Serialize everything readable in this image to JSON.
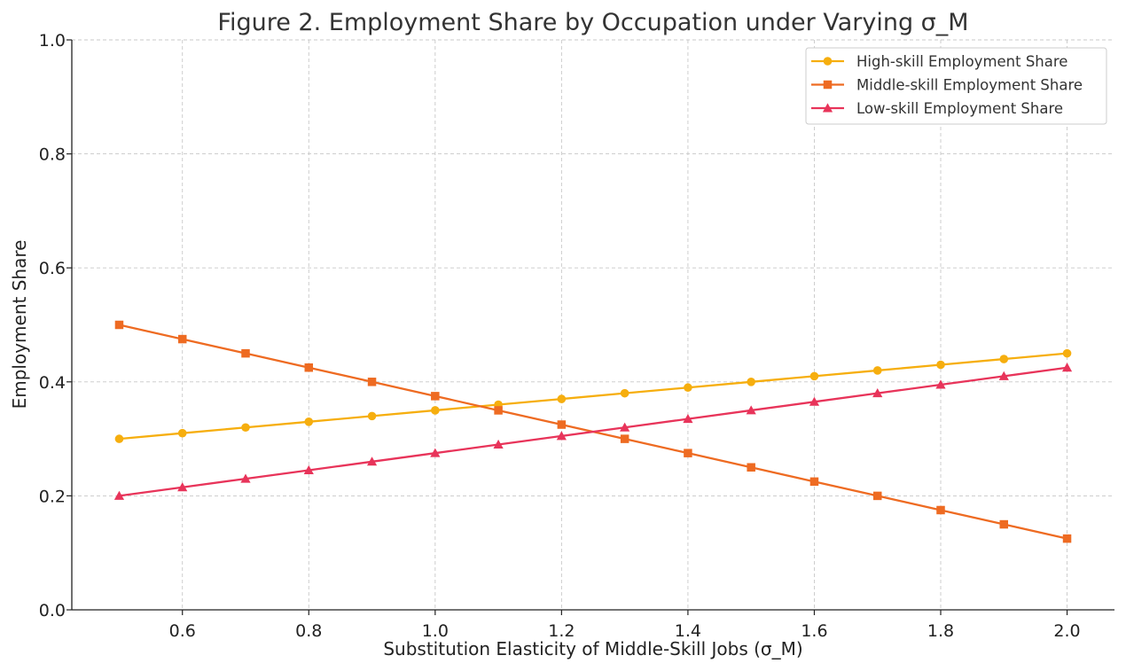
{
  "chart_data": {
    "type": "line",
    "title": "Figure 2. Employment Share by Occupation under Varying σ_M",
    "xlabel": "Substitution Elasticity of Middle-Skill Jobs (σ_M)",
    "ylabel": "Employment Share",
    "xlim": [
      0.425,
      2.075
    ],
    "ylim": [
      0.0,
      1.0
    ],
    "xticks": [
      0.6,
      0.8,
      1.0,
      1.2,
      1.4,
      1.6,
      1.8,
      2.0
    ],
    "xtick_labels": [
      "0.6",
      "0.8",
      "1.0",
      "1.2",
      "1.4",
      "1.6",
      "1.8",
      "2.0"
    ],
    "yticks": [
      0.0,
      0.2,
      0.4,
      0.6,
      0.8,
      1.0
    ],
    "ytick_labels": [
      "0.0",
      "0.2",
      "0.4",
      "0.6",
      "0.8",
      "1.0"
    ],
    "grid": true,
    "legend_position": "top-right",
    "x": [
      0.5,
      0.6,
      0.7,
      0.8,
      0.9,
      1.0,
      1.1,
      1.2,
      1.3,
      1.4,
      1.5,
      1.6,
      1.7,
      1.8,
      1.9,
      2.0
    ],
    "series": [
      {
        "name": "High-skill Employment Share",
        "marker": "circle",
        "color": "#F6AE0E",
        "values": [
          0.3,
          0.31,
          0.32,
          0.33,
          0.34,
          0.35,
          0.36,
          0.37,
          0.38,
          0.39,
          0.4,
          0.41,
          0.42,
          0.43,
          0.44,
          0.45
        ]
      },
      {
        "name": "Middle-skill Employment Share",
        "marker": "square",
        "color": "#EE6B22",
        "values": [
          0.5,
          0.475,
          0.45,
          0.425,
          0.4,
          0.375,
          0.35,
          0.325,
          0.3,
          0.275,
          0.25,
          0.225,
          0.2,
          0.175,
          0.15,
          0.125
        ]
      },
      {
        "name": "Low-skill Employment Share",
        "marker": "triangle",
        "color": "#E8345A",
        "values": [
          0.2,
          0.215,
          0.23,
          0.245,
          0.26,
          0.275,
          0.29,
          0.305,
          0.32,
          0.335,
          0.35,
          0.365,
          0.38,
          0.395,
          0.41,
          0.425
        ]
      }
    ]
  }
}
